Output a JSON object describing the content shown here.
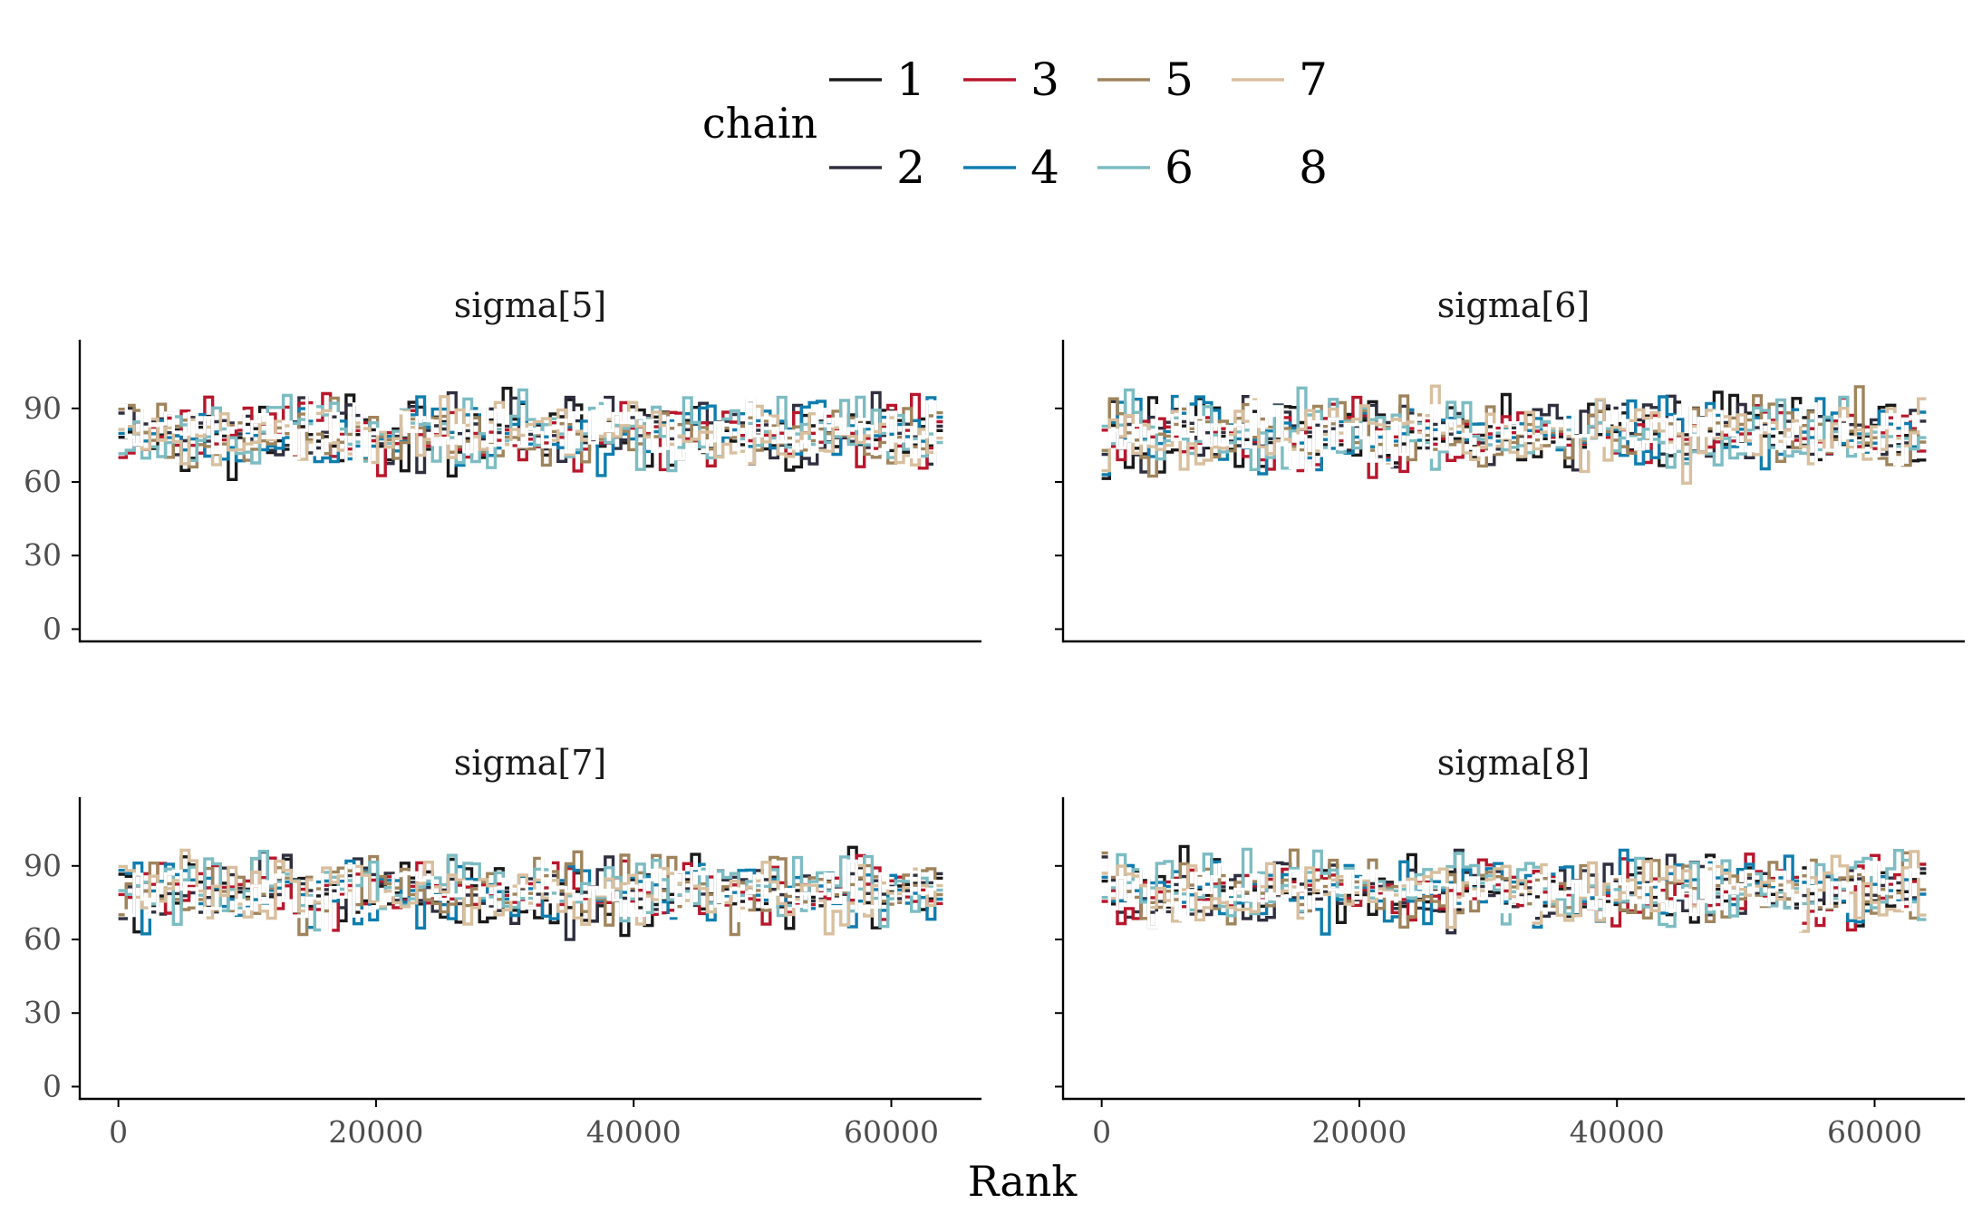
{
  "chart_data": {
    "type": "line",
    "style": "step",
    "xlabel": "Rank",
    "ylabel": "",
    "xlim": [
      -3000,
      67000
    ],
    "ylim": [
      -5,
      118
    ],
    "x_ticks": [
      0,
      20000,
      40000,
      60000
    ],
    "y_ticks": [
      0,
      30,
      60,
      90
    ],
    "x_tick_labels": [
      "0",
      "20000",
      "40000",
      "60000"
    ],
    "y_tick_labels": [
      "0",
      "30",
      "60",
      "90"
    ],
    "grid": false,
    "legend": {
      "title": "chain",
      "position": "top",
      "entries": [
        {
          "label": "1",
          "color": "#191919"
        },
        {
          "label": "2",
          "color": "#2f2f3f"
        },
        {
          "label": "3",
          "color": "#b8172c"
        },
        {
          "label": "4",
          "color": "#0f7dae"
        },
        {
          "label": "5",
          "color": "#9f845c"
        },
        {
          "label": "6",
          "color": "#7cbcc2"
        },
        {
          "label": "7",
          "color": "#d8bf9e"
        },
        {
          "label": "8",
          "color": "#ffffff"
        }
      ]
    },
    "bins": 105,
    "rank_max": 64000,
    "panels": [
      {
        "title": "sigma[5]",
        "expected": 80,
        "range": [
          56,
          103
        ]
      },
      {
        "title": "sigma[6]",
        "expected": 80,
        "range": [
          56,
          107
        ]
      },
      {
        "title": "sigma[7]",
        "expected": 80,
        "range": [
          56,
          109
        ]
      },
      {
        "title": "sigma[8]",
        "expected": 80,
        "range": [
          55,
          105
        ]
      }
    ]
  }
}
